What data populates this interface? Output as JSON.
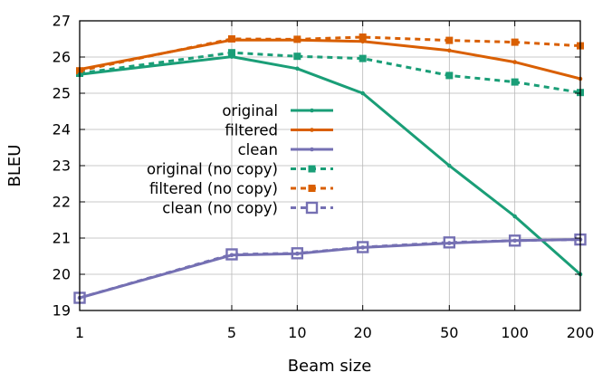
{
  "chart_data": {
    "type": "line",
    "xlabel": "Beam size",
    "ylabel": "BLEU",
    "x_scale": "log",
    "x": [
      1,
      5,
      10,
      20,
      50,
      100,
      200
    ],
    "x_tick_labels": [
      "1",
      "5",
      "10",
      "20",
      "50",
      "100",
      "200"
    ],
    "ylim": [
      19,
      27
    ],
    "y_ticks": [
      19,
      20,
      21,
      22,
      23,
      24,
      25,
      26,
      27
    ],
    "grid": true,
    "legend_position": "center",
    "series": [
      {
        "name": "original",
        "color": "#1a9e77",
        "dash": "solid",
        "marker": "dot",
        "values": [
          25.52,
          26.01,
          25.68,
          25.0,
          23.0,
          21.6,
          20.0
        ]
      },
      {
        "name": "filtered",
        "color": "#d95f02",
        "dash": "solid",
        "marker": "dot",
        "values": [
          25.66,
          26.47,
          26.47,
          26.43,
          26.18,
          25.86,
          25.4
        ]
      },
      {
        "name": "clean",
        "color": "#7570b3",
        "dash": "solid",
        "marker": "dot",
        "values": [
          19.35,
          20.53,
          20.57,
          20.74,
          20.86,
          20.93,
          20.96
        ]
      },
      {
        "name": "original (no copy)",
        "color": "#1a9e77",
        "dash": "dashed",
        "marker": "filled-square",
        "values": [
          25.55,
          26.12,
          26.02,
          25.96,
          25.49,
          25.31,
          25.02
        ]
      },
      {
        "name": "filtered (no copy)",
        "color": "#d95f02",
        "dash": "dashed",
        "marker": "filled-square",
        "values": [
          25.62,
          26.5,
          26.49,
          26.55,
          26.46,
          26.41,
          26.31
        ]
      },
      {
        "name": "clean (no copy)",
        "color": "#7570b3",
        "dash": "dashed",
        "marker": "open-square",
        "values": [
          19.35,
          20.55,
          20.58,
          20.75,
          20.88,
          20.93,
          20.96
        ]
      }
    ]
  }
}
